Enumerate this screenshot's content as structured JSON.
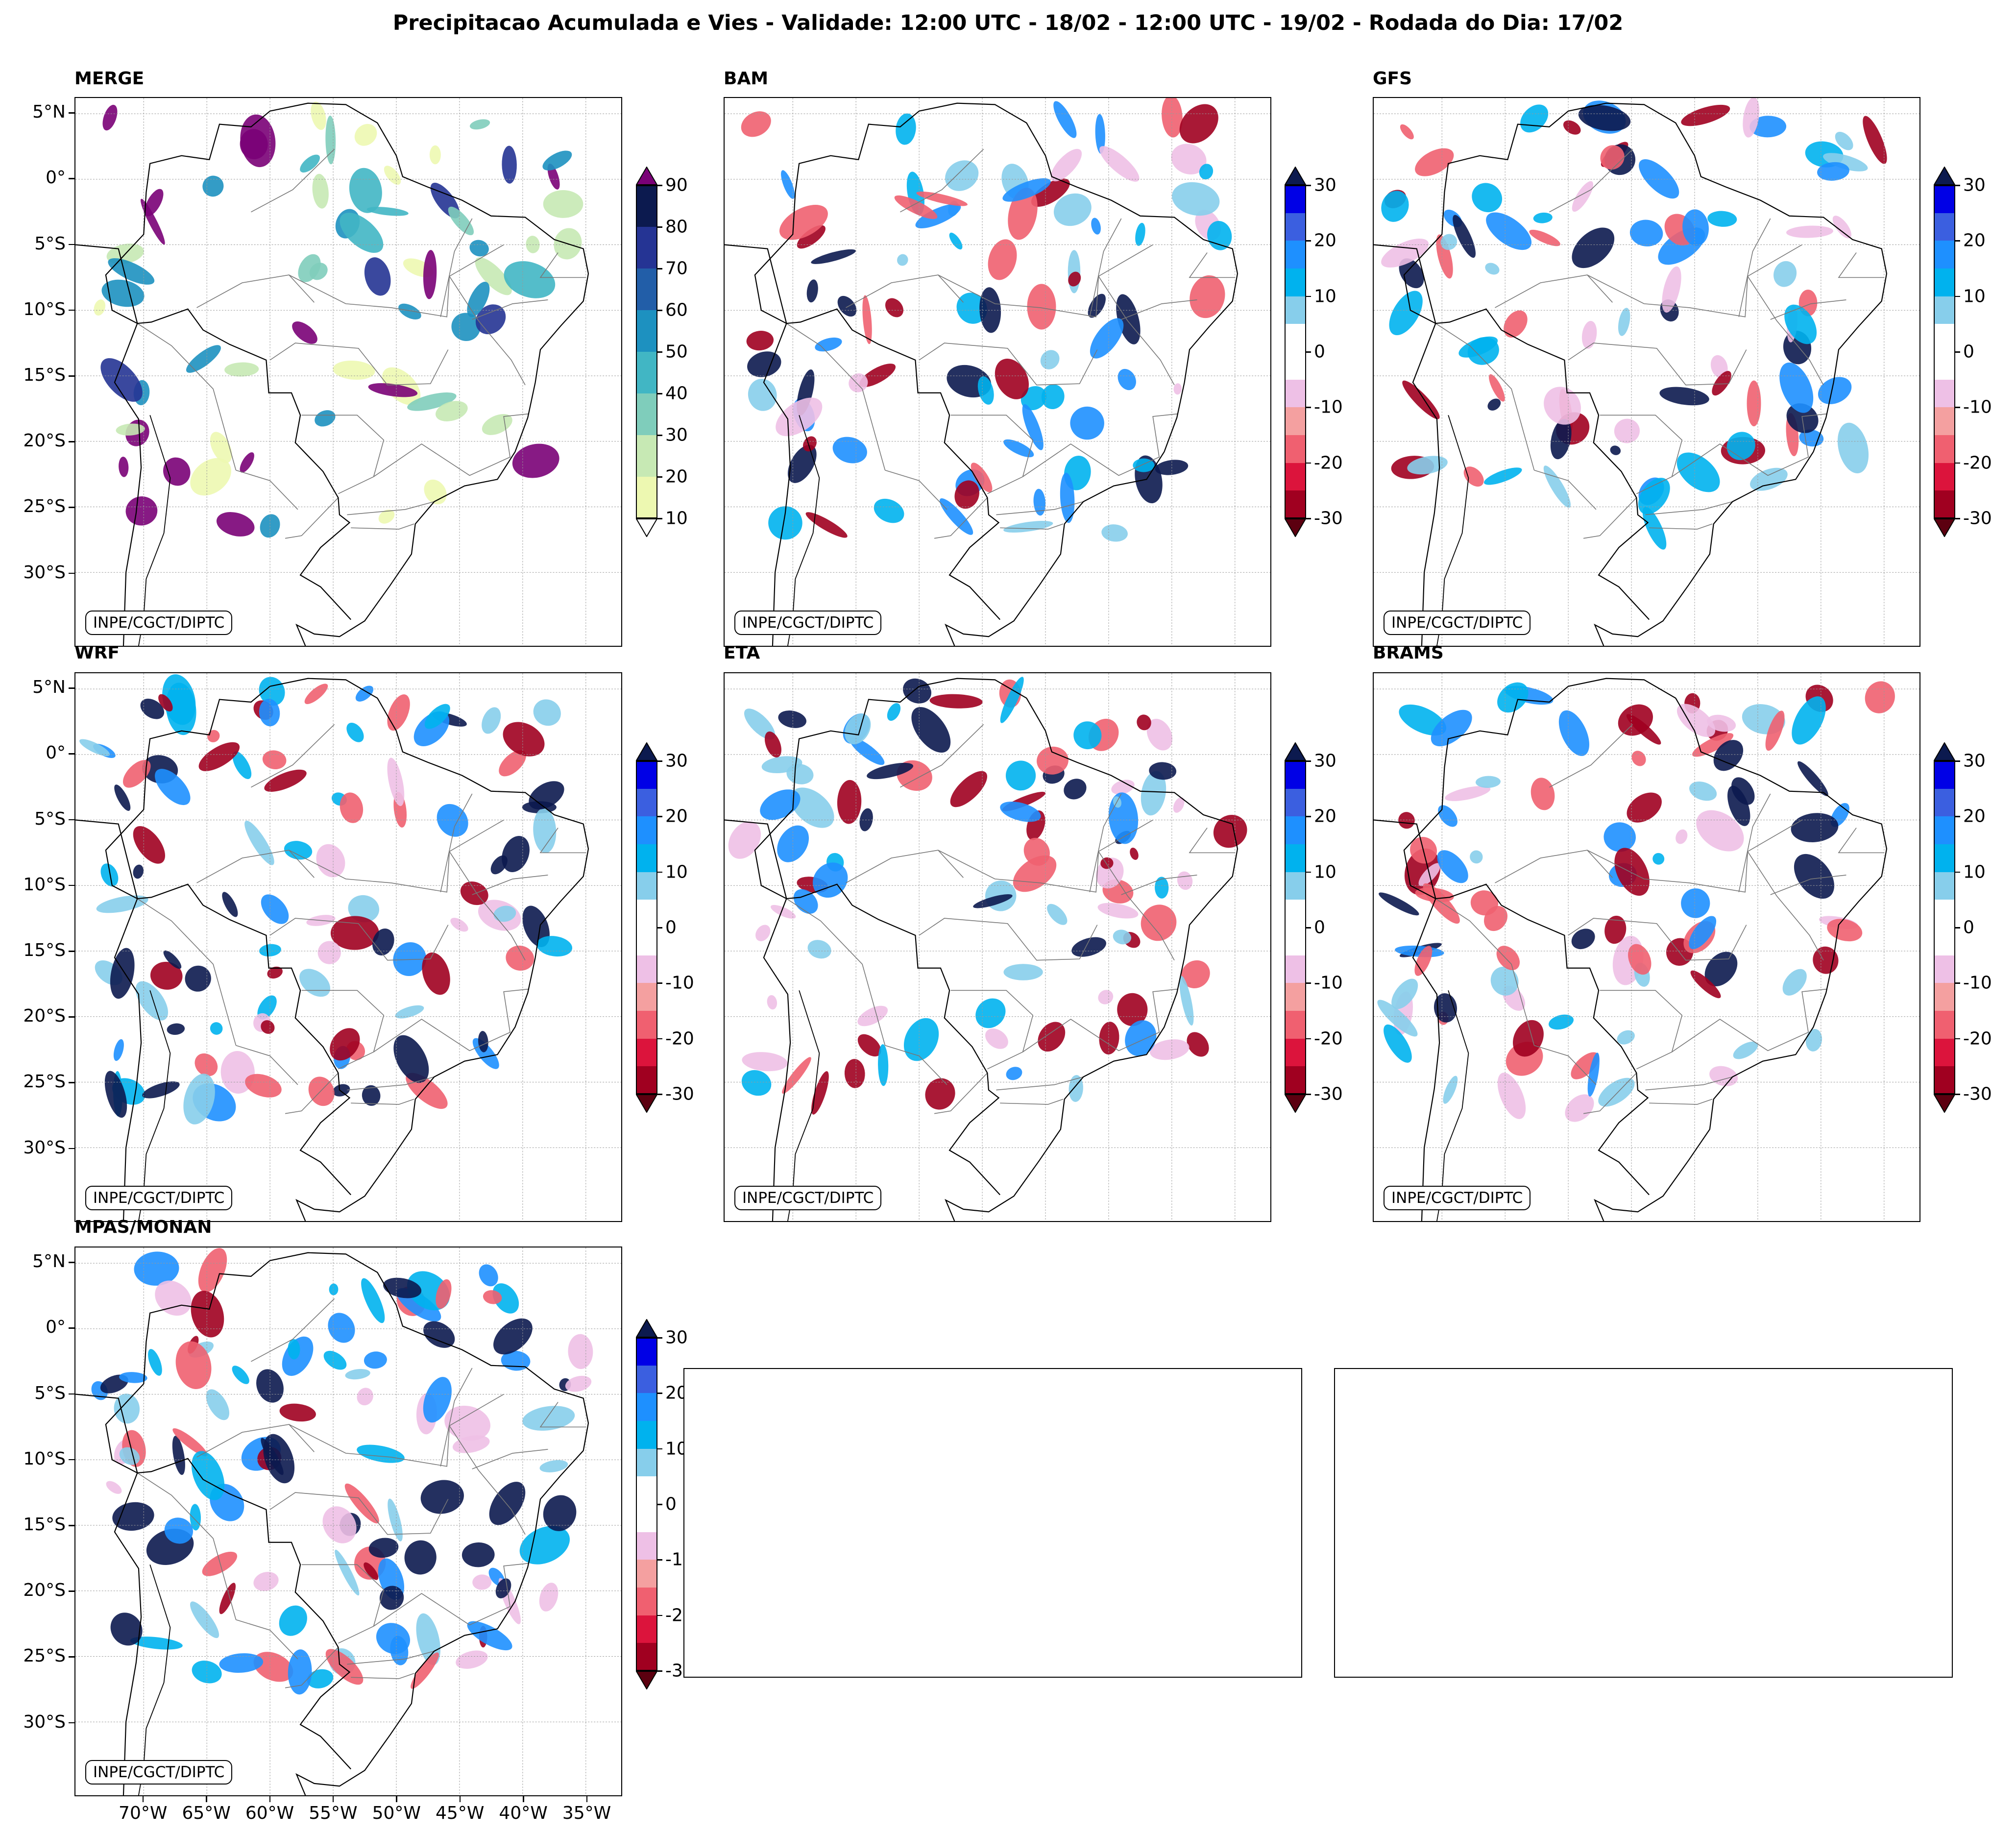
{
  "title": "Precipitacao Acumulada e Vies - Validade: 12:00 UTC - 18/02 - 12:00 UTC - 19/02 - Rodada do Dia: 17/02",
  "credit": "INPE/CGCT/DIPTC",
  "latitude_labels": [
    "5°N",
    "0°",
    "5°S",
    "10°S",
    "15°S",
    "20°S",
    "25°S",
    "30°S"
  ],
  "longitude_labels": [
    "70°W",
    "65°W",
    "60°W",
    "55°W",
    "50°W",
    "45°W",
    "40°W",
    "35°W"
  ],
  "colorbar_precip": {
    "labels": [
      "90",
      "80",
      "70",
      "60",
      "50",
      "40",
      "30",
      "20",
      "10"
    ],
    "colors": [
      "#0c1a4f",
      "#253494",
      "#225ea8",
      "#1d91c0",
      "#41b6c4",
      "#7fcdbb",
      "#c7e9b4",
      "#edf8b1"
    ],
    "extend_top_color": "#7a0177",
    "extend_bottom_color": "#ffffff"
  },
  "colorbar_bias": {
    "labels": [
      "30",
      "20",
      "10",
      "0",
      "-10",
      "-20",
      "-30"
    ],
    "colors": [
      "#0000e6",
      "#3b5fe0",
      "#1e90ff",
      "#00b2ee",
      "#87ceeb",
      "#ffffff",
      "#ffffff",
      "#eec0e6",
      "#f4a0a0",
      "#f06070",
      "#dc143c",
      "#a00020"
    ],
    "extend_top_color": "#0c1a4f",
    "extend_bottom_color": "#5c0010"
  },
  "panels": [
    {
      "title": "MERGE",
      "colorbar": "precip",
      "palette": [
        "#edf8b1",
        "#c7e9b4",
        "#7fcdbb",
        "#41b6c4",
        "#1d91c0",
        "#253494",
        "#7a0177"
      ],
      "blobs": 70
    },
    {
      "title": "BAM",
      "colorbar": "bias",
      "palette": [
        "#87ceeb",
        "#00b2ee",
        "#1e90ff",
        "#0c1a4f",
        "#f06070",
        "#a00020",
        "#eec0e6"
      ],
      "blobs": 90
    },
    {
      "title": "GFS",
      "colorbar": "bias",
      "palette": [
        "#87ceeb",
        "#00b2ee",
        "#1e90ff",
        "#0c1a4f",
        "#f06070",
        "#a00020",
        "#eec0e6"
      ],
      "blobs": 90
    },
    {
      "title": "WRF",
      "colorbar": "bias",
      "palette": [
        "#87ceeb",
        "#00b2ee",
        "#1e90ff",
        "#0c1a4f",
        "#f06070",
        "#a00020",
        "#eec0e6"
      ],
      "blobs": 100
    },
    {
      "title": "ETA",
      "colorbar": "bias",
      "palette": [
        "#87ceeb",
        "#00b2ee",
        "#1e90ff",
        "#0c1a4f",
        "#f06070",
        "#a00020",
        "#eec0e6"
      ],
      "blobs": 95
    },
    {
      "title": "BRAMS",
      "colorbar": "bias",
      "palette": [
        "#87ceeb",
        "#00b2ee",
        "#1e90ff",
        "#0c1a4f",
        "#f06070",
        "#a00020",
        "#eec0e6"
      ],
      "blobs": 90
    },
    {
      "title": "MPAS/MONAN",
      "colorbar": "bias",
      "palette": [
        "#87ceeb",
        "#00b2ee",
        "#1e90ff",
        "#0c1a4f",
        "#f06070",
        "#a00020",
        "#eec0e6"
      ],
      "blobs": 110
    }
  ]
}
